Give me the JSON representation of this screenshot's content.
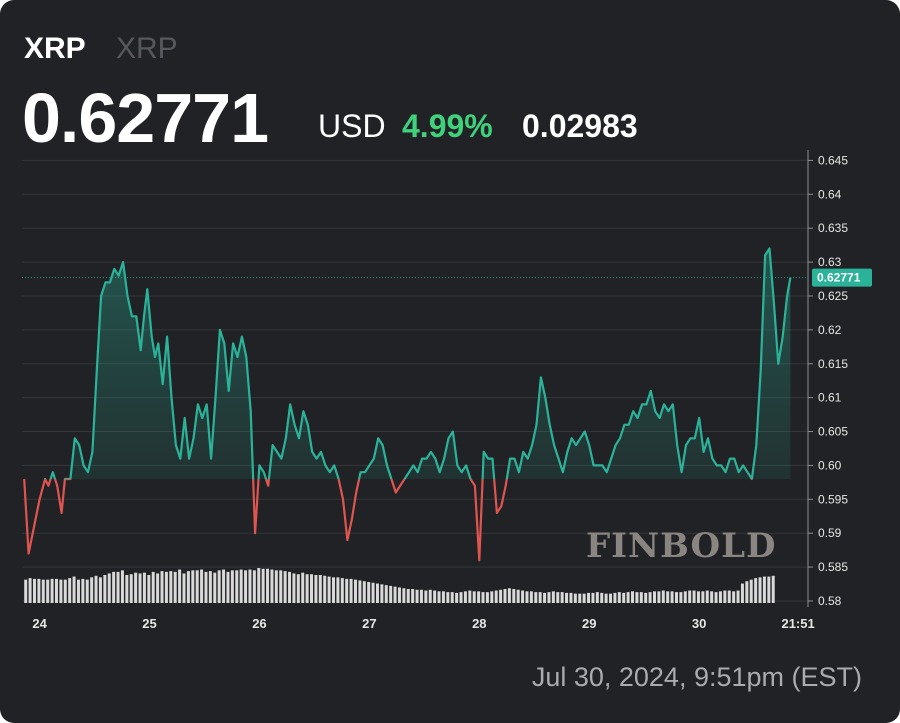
{
  "header": {
    "symbol": "XRP",
    "symbol_secondary": "XRP",
    "price": "0.62771",
    "currency": "USD",
    "change_pct": "4.99%",
    "change_abs": "0.02983"
  },
  "timestamp": "Jul 30, 2024, 9:51pm (EST)",
  "watermark": "FINBOLD",
  "colors": {
    "background": "#202225",
    "up": "#2bb39a",
    "down": "#e0554f",
    "volume": "#d9d9d9",
    "change_positive": "#3fd17c"
  },
  "chart_data": {
    "type": "line",
    "title": "",
    "xlabel": "",
    "ylabel": "",
    "baseline": 0.598,
    "current_value": 0.62771,
    "current_label": "0.62771",
    "y_ticks": [
      0.58,
      0.585,
      0.59,
      0.595,
      0.6,
      0.605,
      0.61,
      0.615,
      0.62,
      0.625,
      0.63,
      0.635,
      0.64,
      0.645
    ],
    "y_tick_labels": [
      "0.58",
      "0.585",
      "0.59",
      "0.595",
      "0.60",
      "0.605",
      "0.61",
      "0.615",
      "0.62",
      "0.625",
      "0.63",
      "0.635",
      "0.64",
      "0.645"
    ],
    "ylim": [
      0.5797,
      0.6458
    ],
    "x_tick_labels": [
      "24",
      "25",
      "26",
      "27",
      "28",
      "29",
      "30",
      "21:51"
    ],
    "x_tick_values": [
      24,
      25,
      26,
      27,
      28,
      29,
      30,
      30.9
    ],
    "xlim": [
      23.84,
      30.99
    ],
    "grid": true,
    "series": [
      {
        "values": [
          [
            23.86,
            0.598
          ],
          [
            23.9,
            0.587
          ],
          [
            23.95,
            0.591
          ],
          [
            24.0,
            0.595
          ],
          [
            24.05,
            0.598
          ],
          [
            24.08,
            0.597
          ],
          [
            24.12,
            0.599
          ],
          [
            24.16,
            0.597
          ],
          [
            24.2,
            0.593
          ],
          [
            24.23,
            0.598
          ],
          [
            24.28,
            0.598
          ],
          [
            24.32,
            0.604
          ],
          [
            24.36,
            0.603
          ],
          [
            24.4,
            0.6
          ],
          [
            24.44,
            0.599
          ],
          [
            24.48,
            0.602
          ],
          [
            24.52,
            0.614
          ],
          [
            24.56,
            0.625
          ],
          [
            24.6,
            0.627
          ],
          [
            24.64,
            0.627
          ],
          [
            24.68,
            0.629
          ],
          [
            24.72,
            0.628
          ],
          [
            24.76,
            0.63
          ],
          [
            24.8,
            0.625
          ],
          [
            24.84,
            0.622
          ],
          [
            24.88,
            0.622
          ],
          [
            24.92,
            0.617
          ],
          [
            24.95,
            0.622
          ],
          [
            24.98,
            0.626
          ],
          [
            25.02,
            0.619
          ],
          [
            25.05,
            0.616
          ],
          [
            25.08,
            0.618
          ],
          [
            25.12,
            0.612
          ],
          [
            25.16,
            0.619
          ],
          [
            25.2,
            0.61
          ],
          [
            25.24,
            0.603
          ],
          [
            25.28,
            0.601
          ],
          [
            25.32,
            0.607
          ],
          [
            25.36,
            0.601
          ],
          [
            25.4,
            0.604
          ],
          [
            25.44,
            0.609
          ],
          [
            25.48,
            0.607
          ],
          [
            25.52,
            0.609
          ],
          [
            25.56,
            0.601
          ],
          [
            25.6,
            0.61
          ],
          [
            25.64,
            0.62
          ],
          [
            25.68,
            0.618
          ],
          [
            25.72,
            0.611
          ],
          [
            25.76,
            0.618
          ],
          [
            25.8,
            0.616
          ],
          [
            25.84,
            0.619
          ],
          [
            25.88,
            0.616
          ],
          [
            25.92,
            0.608
          ],
          [
            25.96,
            0.59
          ],
          [
            26.0,
            0.6
          ],
          [
            26.04,
            0.599
          ],
          [
            26.08,
            0.597
          ],
          [
            26.12,
            0.603
          ],
          [
            26.16,
            0.602
          ],
          [
            26.2,
            0.601
          ],
          [
            26.24,
            0.604
          ],
          [
            26.28,
            0.609
          ],
          [
            26.32,
            0.606
          ],
          [
            26.36,
            0.604
          ],
          [
            26.4,
            0.608
          ],
          [
            26.44,
            0.606
          ],
          [
            26.48,
            0.602
          ],
          [
            26.52,
            0.601
          ],
          [
            26.56,
            0.602
          ],
          [
            26.6,
            0.6
          ],
          [
            26.64,
            0.599
          ],
          [
            26.68,
            0.6
          ],
          [
            26.72,
            0.598
          ],
          [
            26.76,
            0.595
          ],
          [
            26.8,
            0.589
          ],
          [
            26.84,
            0.592
          ],
          [
            26.88,
            0.596
          ],
          [
            26.92,
            0.599
          ],
          [
            26.96,
            0.599
          ],
          [
            27.0,
            0.6
          ],
          [
            27.04,
            0.601
          ],
          [
            27.08,
            0.604
          ],
          [
            27.12,
            0.603
          ],
          [
            27.16,
            0.6
          ],
          [
            27.2,
            0.598
          ],
          [
            27.24,
            0.596
          ],
          [
            27.28,
            0.597
          ],
          [
            27.32,
            0.598
          ],
          [
            27.36,
            0.599
          ],
          [
            27.4,
            0.6
          ],
          [
            27.44,
            0.599
          ],
          [
            27.48,
            0.601
          ],
          [
            27.52,
            0.601
          ],
          [
            27.56,
            0.602
          ],
          [
            27.6,
            0.601
          ],
          [
            27.64,
            0.599
          ],
          [
            27.68,
            0.601
          ],
          [
            27.72,
            0.604
          ],
          [
            27.76,
            0.605
          ],
          [
            27.8,
            0.6
          ],
          [
            27.84,
            0.599
          ],
          [
            27.88,
            0.6
          ],
          [
            27.92,
            0.598
          ],
          [
            27.96,
            0.597
          ],
          [
            28.0,
            0.586
          ],
          [
            28.04,
            0.602
          ],
          [
            28.08,
            0.601
          ],
          [
            28.12,
            0.601
          ],
          [
            28.16,
            0.593
          ],
          [
            28.2,
            0.594
          ],
          [
            28.24,
            0.597
          ],
          [
            28.28,
            0.601
          ],
          [
            28.32,
            0.601
          ],
          [
            28.36,
            0.599
          ],
          [
            28.4,
            0.602
          ],
          [
            28.44,
            0.601
          ],
          [
            28.48,
            0.603
          ],
          [
            28.52,
            0.606
          ],
          [
            28.56,
            0.613
          ],
          [
            28.6,
            0.61
          ],
          [
            28.64,
            0.606
          ],
          [
            28.68,
            0.603
          ],
          [
            28.72,
            0.601
          ],
          [
            28.76,
            0.599
          ],
          [
            28.8,
            0.602
          ],
          [
            28.84,
            0.604
          ],
          [
            28.88,
            0.603
          ],
          [
            28.92,
            0.604
          ],
          [
            28.96,
            0.605
          ],
          [
            29.0,
            0.603
          ],
          [
            29.04,
            0.6
          ],
          [
            29.08,
            0.6
          ],
          [
            29.12,
            0.6
          ],
          [
            29.16,
            0.599
          ],
          [
            29.2,
            0.601
          ],
          [
            29.24,
            0.603
          ],
          [
            29.28,
            0.604
          ],
          [
            29.32,
            0.606
          ],
          [
            29.36,
            0.606
          ],
          [
            29.4,
            0.608
          ],
          [
            29.44,
            0.607
          ],
          [
            29.48,
            0.609
          ],
          [
            29.52,
            0.609
          ],
          [
            29.56,
            0.611
          ],
          [
            29.6,
            0.608
          ],
          [
            29.64,
            0.607
          ],
          [
            29.68,
            0.609
          ],
          [
            29.72,
            0.608
          ],
          [
            29.76,
            0.609
          ],
          [
            29.8,
            0.603
          ],
          [
            29.84,
            0.599
          ],
          [
            29.88,
            0.603
          ],
          [
            29.92,
            0.604
          ],
          [
            29.96,
            0.604
          ],
          [
            30.0,
            0.607
          ],
          [
            30.04,
            0.602
          ],
          [
            30.08,
            0.604
          ],
          [
            30.12,
            0.601
          ],
          [
            30.16,
            0.6
          ],
          [
            30.2,
            0.6
          ],
          [
            30.24,
            0.599
          ],
          [
            30.28,
            0.601
          ],
          [
            30.32,
            0.601
          ],
          [
            30.36,
            0.599
          ],
          [
            30.4,
            0.6
          ],
          [
            30.44,
            0.599
          ],
          [
            30.48,
            0.598
          ],
          [
            30.52,
            0.603
          ],
          [
            30.56,
            0.614
          ],
          [
            30.6,
            0.631
          ],
          [
            30.64,
            0.632
          ],
          [
            30.68,
            0.624
          ],
          [
            30.72,
            0.615
          ],
          [
            30.76,
            0.619
          ],
          [
            30.8,
            0.625
          ],
          [
            30.83,
            0.62771
          ]
        ]
      }
    ],
    "volume": {
      "start": 23.86,
      "step": 0.04,
      "values": [
        0.3,
        0.32,
        0.31,
        0.31,
        0.3,
        0.3,
        0.31,
        0.31,
        0.3,
        0.3,
        0.32,
        0.34,
        0.3,
        0.31,
        0.3,
        0.33,
        0.35,
        0.33,
        0.36,
        0.38,
        0.4,
        0.4,
        0.42,
        0.36,
        0.37,
        0.39,
        0.38,
        0.39,
        0.36,
        0.4,
        0.38,
        0.41,
        0.4,
        0.41,
        0.4,
        0.43,
        0.38,
        0.41,
        0.42,
        0.42,
        0.43,
        0.4,
        0.41,
        0.39,
        0.42,
        0.43,
        0.4,
        0.42,
        0.42,
        0.43,
        0.42,
        0.43,
        0.42,
        0.45,
        0.44,
        0.44,
        0.43,
        0.42,
        0.42,
        0.41,
        0.4,
        0.38,
        0.37,
        0.39,
        0.37,
        0.37,
        0.36,
        0.36,
        0.35,
        0.34,
        0.33,
        0.33,
        0.32,
        0.31,
        0.31,
        0.3,
        0.29,
        0.28,
        0.27,
        0.26,
        0.25,
        0.24,
        0.23,
        0.22,
        0.21,
        0.2,
        0.19,
        0.18,
        0.18,
        0.17,
        0.17,
        0.16,
        0.17,
        0.16,
        0.15,
        0.15,
        0.14,
        0.14,
        0.13,
        0.14,
        0.15,
        0.16,
        0.15,
        0.15,
        0.14,
        0.14,
        0.15,
        0.16,
        0.17,
        0.18,
        0.19,
        0.18,
        0.17,
        0.16,
        0.15,
        0.15,
        0.14,
        0.14,
        0.13,
        0.14,
        0.15,
        0.14,
        0.14,
        0.13,
        0.13,
        0.12,
        0.12,
        0.12,
        0.13,
        0.13,
        0.14,
        0.13,
        0.12,
        0.12,
        0.13,
        0.14,
        0.13,
        0.14,
        0.15,
        0.14,
        0.14,
        0.13,
        0.14,
        0.15,
        0.15,
        0.16,
        0.15,
        0.15,
        0.14,
        0.14,
        0.15,
        0.16,
        0.16,
        0.15,
        0.15,
        0.16,
        0.15,
        0.14,
        0.15,
        0.16,
        0.16,
        0.15,
        0.16,
        0.25,
        0.28,
        0.3,
        0.32,
        0.33,
        0.34,
        0.34,
        0.35
      ]
    }
  }
}
